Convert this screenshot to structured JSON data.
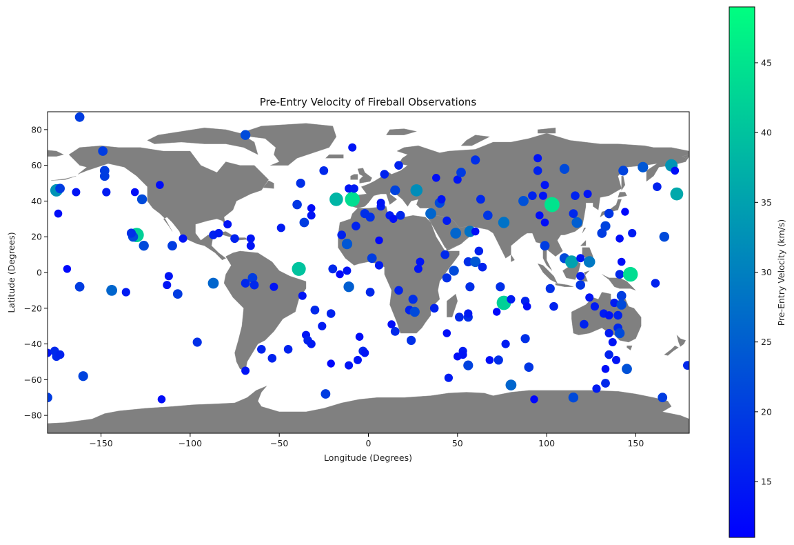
{
  "chart_data": {
    "type": "scatter",
    "title": "Pre-Entry Velocity of Fireball Observations",
    "xlabel": "Longitude (Degrees)",
    "ylabel": "Latitude (Degrees)",
    "xlim": [
      -180,
      180
    ],
    "ylim": [
      -90,
      90
    ],
    "x_ticks": [
      "−150",
      "−100",
      "−50",
      "0",
      "50",
      "100",
      "150"
    ],
    "y_ticks": [
      "−80",
      "−60",
      "−40",
      "−20",
      "0",
      "20",
      "40",
      "60",
      "80"
    ],
    "grid": false,
    "background_map": "world land masses (grey)",
    "colorbar": {
      "label": "Pre-Entry Velocity (km/s)",
      "range": [
        11,
        49
      ],
      "ticks": [
        "15",
        "20",
        "25",
        "30",
        "35",
        "40",
        "45"
      ],
      "colormap": "winter",
      "color_low": "#0000ff",
      "color_high": "#00ff80"
    },
    "marker_size_encodes": "velocity",
    "points": [
      {
        "lon": -162,
        "lat": 87,
        "v": 20
      },
      {
        "lon": -69,
        "lat": 77,
        "v": 22
      },
      {
        "lon": -149,
        "lat": 68,
        "v": 20
      },
      {
        "lon": -9,
        "lat": 70,
        "v": 14
      },
      {
        "lon": -148,
        "lat": 57,
        "v": 20
      },
      {
        "lon": -148,
        "lat": 54,
        "v": 20
      },
      {
        "lon": -147,
        "lat": 45,
        "v": 15
      },
      {
        "lon": -175,
        "lat": 46,
        "v": 33
      },
      {
        "lon": -173,
        "lat": 47,
        "v": 20
      },
      {
        "lon": -164,
        "lat": 45,
        "v": 14
      },
      {
        "lon": -174,
        "lat": 33,
        "v": 13
      },
      {
        "lon": -131,
        "lat": 45,
        "v": 13
      },
      {
        "lon": -127,
        "lat": 41,
        "v": 22
      },
      {
        "lon": -117,
        "lat": 49,
        "v": 13
      },
      {
        "lon": -130,
        "lat": 21,
        "v": 42
      },
      {
        "lon": -132,
        "lat": 20,
        "v": 22
      },
      {
        "lon": -133,
        "lat": 22,
        "v": 18
      },
      {
        "lon": -126,
        "lat": 15,
        "v": 22
      },
      {
        "lon": -110,
        "lat": 15,
        "v": 20
      },
      {
        "lon": -104,
        "lat": 19,
        "v": 14
      },
      {
        "lon": -87,
        "lat": 21,
        "v": 16
      },
      {
        "lon": -84,
        "lat": 22,
        "v": 15
      },
      {
        "lon": -79,
        "lat": 27,
        "v": 14
      },
      {
        "lon": -75,
        "lat": 19,
        "v": 16
      },
      {
        "lon": -66,
        "lat": 19,
        "v": 14
      },
      {
        "lon": -66,
        "lat": 15,
        "v": 14
      },
      {
        "lon": -169,
        "lat": 2,
        "v": 12
      },
      {
        "lon": -162,
        "lat": -8,
        "v": 20
      },
      {
        "lon": -144,
        "lat": -10,
        "v": 26
      },
      {
        "lon": -136,
        "lat": -11,
        "v": 15
      },
      {
        "lon": -112,
        "lat": -2,
        "v": 14
      },
      {
        "lon": -113,
        "lat": -7,
        "v": 14
      },
      {
        "lon": -107,
        "lat": -12,
        "v": 20
      },
      {
        "lon": -87,
        "lat": -6,
        "v": 26
      },
      {
        "lon": -69,
        "lat": -6,
        "v": 17
      },
      {
        "lon": -65,
        "lat": -3,
        "v": 20
      },
      {
        "lon": -64,
        "lat": -7,
        "v": 17
      },
      {
        "lon": -53,
        "lat": -8,
        "v": 14
      },
      {
        "lon": -39,
        "lat": 2,
        "v": 40
      },
      {
        "lon": -37,
        "lat": -13,
        "v": 14
      },
      {
        "lon": -180,
        "lat": -45,
        "v": 14
      },
      {
        "lon": -176,
        "lat": -44,
        "v": 17
      },
      {
        "lon": -175,
        "lat": -47,
        "v": 17
      },
      {
        "lon": -173,
        "lat": -46,
        "v": 16
      },
      {
        "lon": -180,
        "lat": -70,
        "v": 20
      },
      {
        "lon": -160,
        "lat": -58,
        "v": 21
      },
      {
        "lon": -116,
        "lat": -71,
        "v": 13
      },
      {
        "lon": -96,
        "lat": -39,
        "v": 18
      },
      {
        "lon": -60,
        "lat": -43,
        "v": 16
      },
      {
        "lon": -54,
        "lat": -48,
        "v": 16
      },
      {
        "lon": -45,
        "lat": -43,
        "v": 16
      },
      {
        "lon": -69,
        "lat": -55,
        "v": 14
      },
      {
        "lon": -35,
        "lat": -35,
        "v": 14
      },
      {
        "lon": -34,
        "lat": -38,
        "v": 16
      },
      {
        "lon": -32,
        "lat": -40,
        "v": 15
      },
      {
        "lon": -30,
        "lat": -21,
        "v": 17
      },
      {
        "lon": -26,
        "lat": -30,
        "v": 15
      },
      {
        "lon": -21,
        "lat": -23,
        "v": 16
      },
      {
        "lon": -24,
        "lat": -68,
        "v": 20
      },
      {
        "lon": -21,
        "lat": -51,
        "v": 12
      },
      {
        "lon": -11,
        "lat": -52,
        "v": 14
      },
      {
        "lon": -6,
        "lat": -49,
        "v": 14
      },
      {
        "lon": -5,
        "lat": -36,
        "v": 13
      },
      {
        "lon": -3,
        "lat": -44,
        "v": 17
      },
      {
        "lon": -2,
        "lat": -45,
        "v": 14
      },
      {
        "lon": -49,
        "lat": 25,
        "v": 15
      },
      {
        "lon": -40,
        "lat": 38,
        "v": 19
      },
      {
        "lon": -38,
        "lat": 50,
        "v": 18
      },
      {
        "lon": -36,
        "lat": 28,
        "v": 20
      },
      {
        "lon": -32,
        "lat": 32,
        "v": 14
      },
      {
        "lon": -32,
        "lat": 36,
        "v": 13
      },
      {
        "lon": -25,
        "lat": 57,
        "v": 17
      },
      {
        "lon": -18,
        "lat": 41,
        "v": 38
      },
      {
        "lon": -9,
        "lat": 41,
        "v": 44
      },
      {
        "lon": -11,
        "lat": 47,
        "v": 14
      },
      {
        "lon": -8,
        "lat": 47,
        "v": 15
      },
      {
        "lon": -15,
        "lat": 21,
        "v": 16
      },
      {
        "lon": -12,
        "lat": 16,
        "v": 24
      },
      {
        "lon": -7,
        "lat": 26,
        "v": 16
      },
      {
        "lon": -2,
        "lat": 33,
        "v": 18
      },
      {
        "lon": 1,
        "lat": 31,
        "v": 18
      },
      {
        "lon": -20,
        "lat": 2,
        "v": 17
      },
      {
        "lon": -16,
        "lat": -1,
        "v": 12
      },
      {
        "lon": -12,
        "lat": 1,
        "v": 14
      },
      {
        "lon": -11,
        "lat": -8,
        "v": 25
      },
      {
        "lon": 1,
        "lat": -11,
        "v": 17
      },
      {
        "lon": 2,
        "lat": 8,
        "v": 20
      },
      {
        "lon": 6,
        "lat": 4,
        "v": 15
      },
      {
        "lon": 6,
        "lat": 18,
        "v": 12
      },
      {
        "lon": 7,
        "lat": 37,
        "v": 15
      },
      {
        "lon": 7,
        "lat": 39,
        "v": 14
      },
      {
        "lon": 9,
        "lat": 55,
        "v": 16
      },
      {
        "lon": 12,
        "lat": 32,
        "v": 15
      },
      {
        "lon": 14,
        "lat": 30,
        "v": 13
      },
      {
        "lon": 15,
        "lat": 46,
        "v": 21
      },
      {
        "lon": 17,
        "lat": 60,
        "v": 16
      },
      {
        "lon": 18,
        "lat": 32,
        "v": 17
      },
      {
        "lon": 13,
        "lat": -29,
        "v": 13
      },
      {
        "lon": 15,
        "lat": -33,
        "v": 17
      },
      {
        "lon": 17,
        "lat": -10,
        "v": 16
      },
      {
        "lon": 23,
        "lat": -21,
        "v": 16
      },
      {
        "lon": 24,
        "lat": -38,
        "v": 18
      },
      {
        "lon": 25,
        "lat": -15,
        "v": 18
      },
      {
        "lon": 26,
        "lat": -22,
        "v": 22
      },
      {
        "lon": 27,
        "lat": 46,
        "v": 32
      },
      {
        "lon": 28,
        "lat": 2,
        "v": 14
      },
      {
        "lon": 29,
        "lat": 6,
        "v": 14
      },
      {
        "lon": 35,
        "lat": 33,
        "v": 26
      },
      {
        "lon": 37,
        "lat": -20,
        "v": 16
      },
      {
        "lon": 38,
        "lat": 53,
        "v": 13
      },
      {
        "lon": 40,
        "lat": 39,
        "v": 22
      },
      {
        "lon": 41,
        "lat": 41,
        "v": 14
      },
      {
        "lon": 43,
        "lat": 10,
        "v": 17
      },
      {
        "lon": 44,
        "lat": 29,
        "v": 15
      },
      {
        "lon": 44,
        "lat": -3,
        "v": 18
      },
      {
        "lon": 44,
        "lat": -34,
        "v": 13
      },
      {
        "lon": 45,
        "lat": -59,
        "v": 15
      },
      {
        "lon": 48,
        "lat": 1,
        "v": 22
      },
      {
        "lon": 49,
        "lat": 22,
        "v": 26
      },
      {
        "lon": 50,
        "lat": 52,
        "v": 14
      },
      {
        "lon": 51,
        "lat": -25,
        "v": 17
      },
      {
        "lon": 50,
        "lat": -47,
        "v": 13
      },
      {
        "lon": 52,
        "lat": 56,
        "v": 20
      },
      {
        "lon": 53,
        "lat": -44,
        "v": 15
      },
      {
        "lon": 53,
        "lat": -46,
        "v": 14
      },
      {
        "lon": 56,
        "lat": -52,
        "v": 21
      },
      {
        "lon": 56,
        "lat": -25,
        "v": 18
      },
      {
        "lon": 56,
        "lat": -23,
        "v": 15
      },
      {
        "lon": 57,
        "lat": 23,
        "v": 28
      },
      {
        "lon": 56,
        "lat": 6,
        "v": 18
      },
      {
        "lon": 57,
        "lat": -8,
        "v": 18
      },
      {
        "lon": 60,
        "lat": 63,
        "v": 18
      },
      {
        "lon": 60,
        "lat": 6,
        "v": 24
      },
      {
        "lon": 60,
        "lat": 23,
        "v": 13
      },
      {
        "lon": 62,
        "lat": 12,
        "v": 16
      },
      {
        "lon": 63,
        "lat": 41,
        "v": 17
      },
      {
        "lon": 64,
        "lat": 3,
        "v": 16
      },
      {
        "lon": 67,
        "lat": 32,
        "v": 19
      },
      {
        "lon": 68,
        "lat": -49,
        "v": 13
      },
      {
        "lon": 72,
        "lat": -22,
        "v": 12
      },
      {
        "lon": 73,
        "lat": -49,
        "v": 18
      },
      {
        "lon": 74,
        "lat": -8,
        "v": 18
      },
      {
        "lon": 76,
        "lat": 28,
        "v": 28
      },
      {
        "lon": 76,
        "lat": -17,
        "v": 42
      },
      {
        "lon": 77,
        "lat": -40,
        "v": 15
      },
      {
        "lon": 80,
        "lat": -15,
        "v": 15
      },
      {
        "lon": 80,
        "lat": -63,
        "v": 26
      },
      {
        "lon": 87,
        "lat": 40,
        "v": 23
      },
      {
        "lon": 88,
        "lat": -37,
        "v": 18
      },
      {
        "lon": 88,
        "lat": -16,
        "v": 16
      },
      {
        "lon": 89,
        "lat": -19,
        "v": 13
      },
      {
        "lon": 90,
        "lat": -53,
        "v": 19
      },
      {
        "lon": 92,
        "lat": 43,
        "v": 16
      },
      {
        "lon": 93,
        "lat": -71,
        "v": 12
      },
      {
        "lon": 95,
        "lat": 64,
        "v": 14
      },
      {
        "lon": 95,
        "lat": 57,
        "v": 16
      },
      {
        "lon": 96,
        "lat": 32,
        "v": 13
      },
      {
        "lon": 98,
        "lat": 43,
        "v": 14
      },
      {
        "lon": 99,
        "lat": 28,
        "v": 13
      },
      {
        "lon": 99,
        "lat": 15,
        "v": 20
      },
      {
        "lon": 99,
        "lat": 49,
        "v": 14
      },
      {
        "lon": 102,
        "lat": -9,
        "v": 18
      },
      {
        "lon": 103,
        "lat": 38,
        "v": 45
      },
      {
        "lon": 104,
        "lat": -19,
        "v": 16
      },
      {
        "lon": 110,
        "lat": 58,
        "v": 22
      },
      {
        "lon": 110,
        "lat": 8,
        "v": 22
      },
      {
        "lon": 114,
        "lat": 6,
        "v": 35
      },
      {
        "lon": 116,
        "lat": 43,
        "v": 16
      },
      {
        "lon": 117,
        "lat": 28,
        "v": 25
      },
      {
        "lon": 115,
        "lat": -70,
        "v": 22
      },
      {
        "lon": 115,
        "lat": 33,
        "v": 17
      },
      {
        "lon": 119,
        "lat": 8,
        "v": 14
      },
      {
        "lon": 119,
        "lat": -2,
        "v": 15
      },
      {
        "lon": 119,
        "lat": -7,
        "v": 19
      },
      {
        "lon": 121,
        "lat": -29,
        "v": 16
      },
      {
        "lon": 123,
        "lat": 44,
        "v": 14
      },
      {
        "lon": 124,
        "lat": 6,
        "v": 29
      },
      {
        "lon": 124,
        "lat": -14,
        "v": 14
      },
      {
        "lon": 127,
        "lat": -19,
        "v": 15
      },
      {
        "lon": 128,
        "lat": -65,
        "v": 15
      },
      {
        "lon": 131,
        "lat": 22,
        "v": 20
      },
      {
        "lon": 132,
        "lat": -23,
        "v": 15
      },
      {
        "lon": 133,
        "lat": -54,
        "v": 13
      },
      {
        "lon": 133,
        "lat": -62,
        "v": 17
      },
      {
        "lon": 133,
        "lat": 26,
        "v": 21
      },
      {
        "lon": 135,
        "lat": 33,
        "v": 19
      },
      {
        "lon": 135,
        "lat": -24,
        "v": 14
      },
      {
        "lon": 135,
        "lat": -34,
        "v": 15
      },
      {
        "lon": 135,
        "lat": -46,
        "v": 16
      },
      {
        "lon": 137,
        "lat": -39,
        "v": 14
      },
      {
        "lon": 138,
        "lat": -17,
        "v": 15
      },
      {
        "lon": 139,
        "lat": -49,
        "v": 14
      },
      {
        "lon": 140,
        "lat": -24,
        "v": 16
      },
      {
        "lon": 140,
        "lat": -31,
        "v": 17
      },
      {
        "lon": 141,
        "lat": 19,
        "v": 13
      },
      {
        "lon": 141,
        "lat": -1,
        "v": 17
      },
      {
        "lon": 141,
        "lat": -34,
        "v": 22
      },
      {
        "lon": 142,
        "lat": -13,
        "v": 20
      },
      {
        "lon": 142,
        "lat": -18,
        "v": 22
      },
      {
        "lon": 142,
        "lat": 6,
        "v": 13
      },
      {
        "lon": 143,
        "lat": 57,
        "v": 21
      },
      {
        "lon": 144,
        "lat": 34,
        "v": 12
      },
      {
        "lon": 145,
        "lat": -54,
        "v": 23
      },
      {
        "lon": 147,
        "lat": -1,
        "v": 44
      },
      {
        "lon": 148,
        "lat": 22,
        "v": 15
      },
      {
        "lon": 154,
        "lat": 59,
        "v": 24
      },
      {
        "lon": 161,
        "lat": -6,
        "v": 16
      },
      {
        "lon": 162,
        "lat": 48,
        "v": 16
      },
      {
        "lon": 165,
        "lat": -70,
        "v": 20
      },
      {
        "lon": 166,
        "lat": 20,
        "v": 22
      },
      {
        "lon": 170,
        "lat": 60,
        "v": 33
      },
      {
        "lon": 172,
        "lat": 57,
        "v": 13
      },
      {
        "lon": 173,
        "lat": 44,
        "v": 36
      },
      {
        "lon": 179,
        "lat": -52,
        "v": 17
      }
    ]
  }
}
